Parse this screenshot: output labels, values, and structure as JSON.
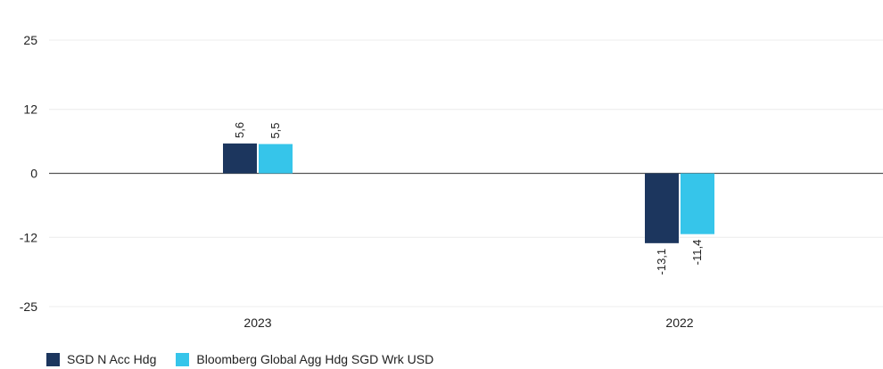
{
  "chart_data": {
    "type": "bar",
    "categories": [
      "2023",
      "2022"
    ],
    "series": [
      {
        "name": "SGD N Acc Hdg",
        "values": [
          5.6,
          -13.1
        ],
        "labels": [
          "5,6",
          "-13,1"
        ],
        "color": "#1c365e"
      },
      {
        "name": "Bloomberg Global Agg Hdg SGD Wrk USD",
        "values": [
          5.5,
          -11.4
        ],
        "labels": [
          "5,5",
          "-11,4"
        ],
        "color": "#36c5ea"
      }
    ],
    "y_ticks": [
      25,
      12,
      0,
      -12,
      -25
    ],
    "y_tick_labels": [
      "25",
      "12",
      "0",
      "-12",
      "-25"
    ],
    "ylim": [
      -25,
      25
    ],
    "grid": true,
    "legend_position": "bottom-left"
  }
}
